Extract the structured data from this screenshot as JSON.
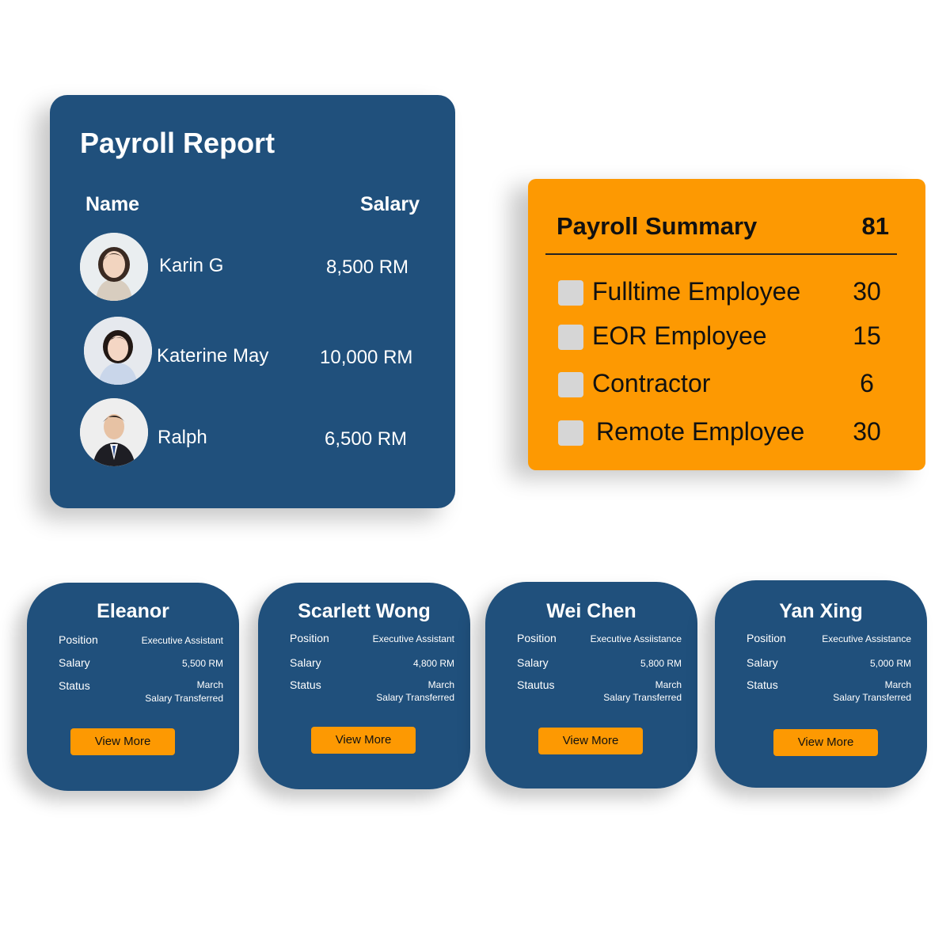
{
  "payroll_report": {
    "title": "Payroll Report",
    "columns": {
      "name": "Name",
      "salary": "Salary"
    },
    "employees": [
      {
        "name": "Karin G",
        "salary": "8,500 RM",
        "avatar": "female-avatar"
      },
      {
        "name": "Katerine May",
        "salary": "10,000 RM",
        "avatar": "female-avatar"
      },
      {
        "name": "Ralph",
        "salary": "6,500 RM",
        "avatar": "male-avatar"
      }
    ]
  },
  "payroll_summary": {
    "title": "Payroll Summary",
    "total": "81",
    "items": [
      {
        "label": "Fulltime Employee",
        "count": "30"
      },
      {
        "label": "EOR Employee",
        "count": "15"
      },
      {
        "label": "Contractor",
        "count": "6"
      },
      {
        "label": "Remote Employee",
        "count": "30"
      }
    ]
  },
  "employee_cards": [
    {
      "name": "Eleanor",
      "position_label": "Position",
      "position": "Executive Assistant",
      "salary_label": "Salary",
      "salary": "5,500 RM",
      "status_label": "Status",
      "status_line1": "March",
      "status_line2": "Salary Transferred",
      "button": "View More"
    },
    {
      "name": "Scarlett Wong",
      "position_label": "Position",
      "position": "Executive Assistant",
      "salary_label": "Salary",
      "salary": "4,800 RM",
      "status_label": "Status",
      "status_line1": "March",
      "status_line2": "Salary Transferred",
      "button": "View More"
    },
    {
      "name": "Wei Chen",
      "position_label": "Position",
      "position": "Executive Assiistance",
      "salary_label": "Salary",
      "salary": "5,800 RM",
      "status_label": "Stautus",
      "status_line1": "March",
      "status_line2": "Salary Transferred",
      "button": "View More"
    },
    {
      "name": "Yan Xing",
      "position_label": "Position",
      "position": "Executive Assistance",
      "salary_label": "Salary",
      "salary": "5,000 RM",
      "status_label": "Status",
      "status_line1": "March",
      "status_line2": "Salary Transferred",
      "button": "View More"
    }
  ],
  "colors": {
    "navy": "#20507c",
    "orange": "#fd9902",
    "checkbox": "#d6d6d6"
  }
}
